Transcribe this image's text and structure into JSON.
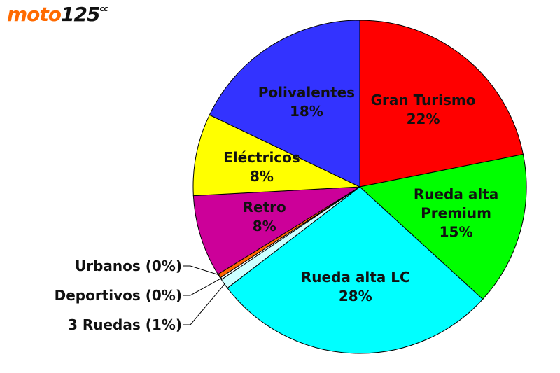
{
  "logo": {
    "text": "moto",
    "number": "125",
    "suffix": "cc"
  },
  "chart_data": {
    "type": "pie",
    "categories": [
      "Gran Turismo",
      "Rueda alta Premium",
      "Rueda alta LC",
      "3 Ruedas",
      "Deportivos",
      "Urbanos",
      "Retro",
      "Eléctricos",
      "Polivalentes"
    ],
    "values": [
      22,
      15,
      28,
      1,
      0.2,
      0.4,
      8,
      8,
      18
    ],
    "value_labels": [
      "22%",
      "15%",
      "28%",
      "(1%)",
      "(0%)",
      "(0%)",
      "8%",
      "8%",
      "18%"
    ],
    "colors": [
      "#ff0000",
      "#00ff00",
      "#00ffff",
      "#ccffff",
      "#ffffff",
      "#ff6600",
      "#cc0099",
      "#ffff00",
      "#3333ff"
    ]
  }
}
